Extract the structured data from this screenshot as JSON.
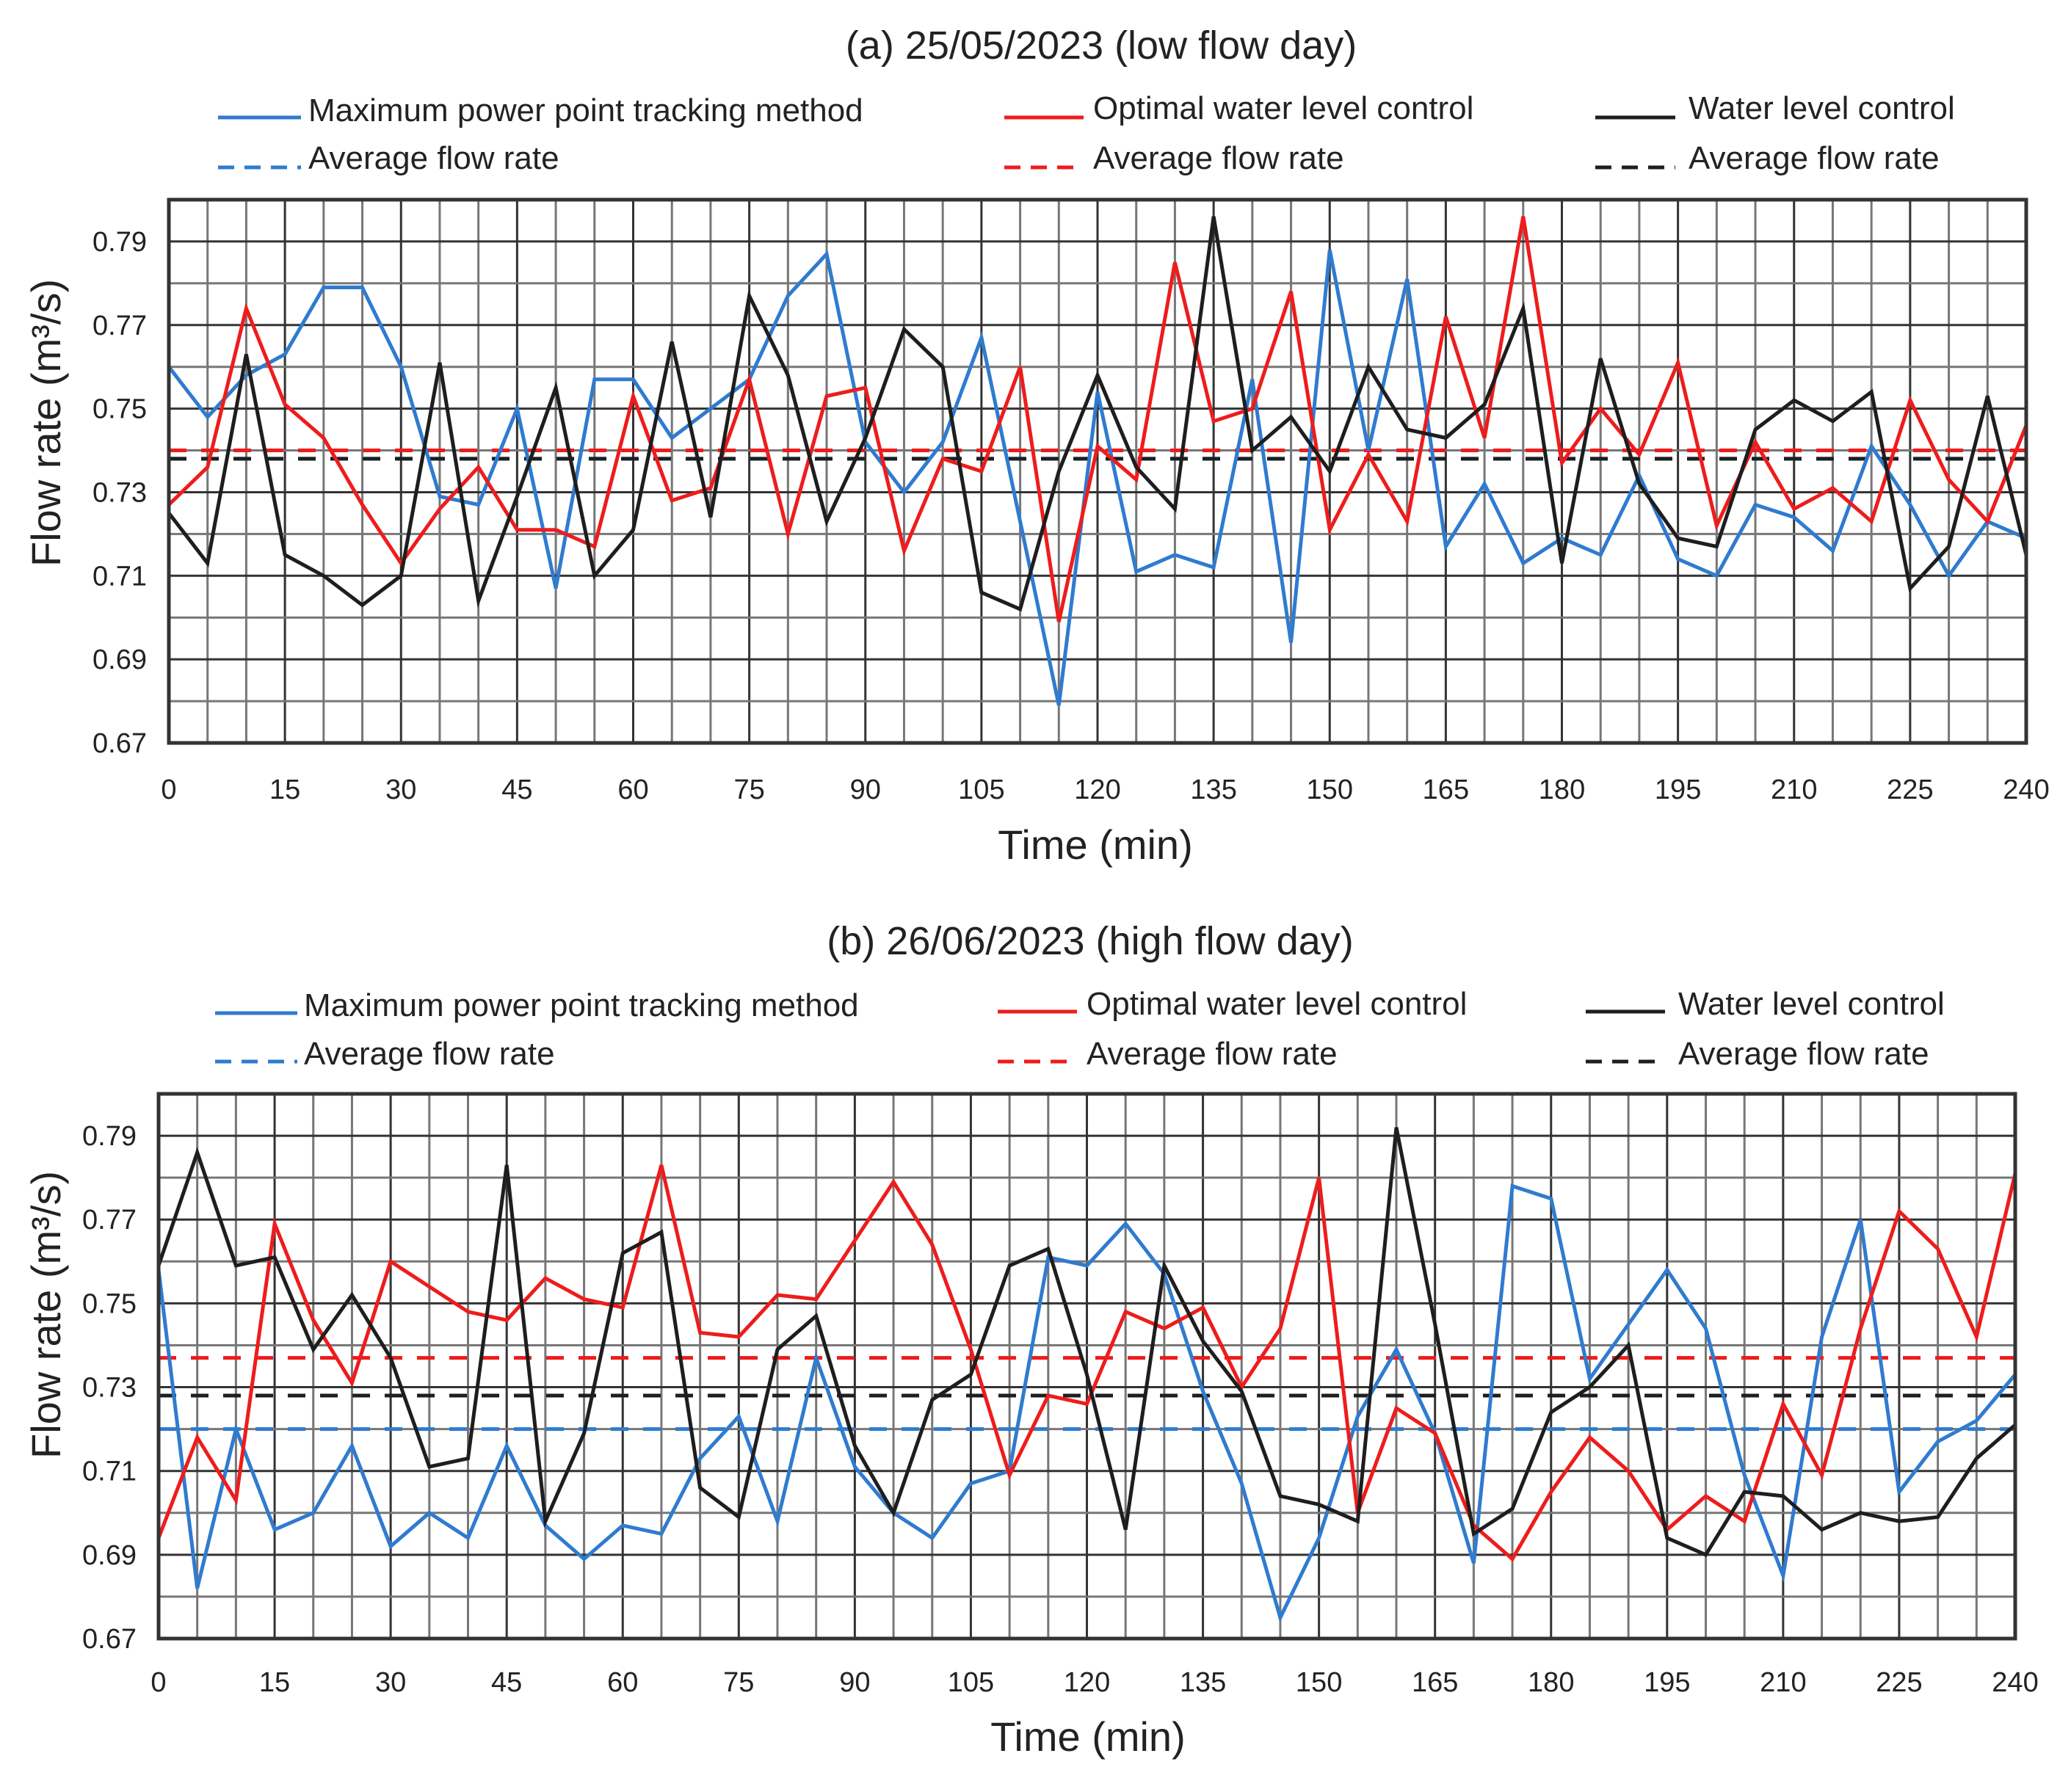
{
  "colors": {
    "mppt": "#2f7bcf",
    "optimal": "#ee1c1c",
    "wlc": "#1e1e1e",
    "grid": "#4a4a4a"
  },
  "chart_data": [
    {
      "type": "line",
      "title": "(a) 25/05/2023 (low flow day)",
      "xlabel": "Time (min)",
      "ylabel": "Flow rate (m³/s)",
      "xlim": [
        0,
        240
      ],
      "ylim": [
        0.67,
        0.8
      ],
      "grid": true,
      "xticks": [
        "0",
        "15",
        "30",
        "45",
        "60",
        "75",
        "90",
        "105",
        "120",
        "135",
        "150",
        "165",
        "180",
        "195",
        "210",
        "225",
        "240"
      ],
      "yticks": [
        "0.67",
        "0.69",
        "0.71",
        "0.73",
        "0.75",
        "0.77",
        "0.79"
      ],
      "x_step": 5,
      "legend": {
        "placement": "top",
        "items": [
          "Maximum power point tracking method",
          "Optimal water level control",
          "Water level control",
          "Average flow rate",
          "Average flow rate",
          "Average flow rate"
        ]
      },
      "series": [
        {
          "name": "Maximum power point tracking method",
          "key": "mppt",
          "average": 0.738,
          "values": [
            0.76,
            0.748,
            0.758,
            0.763,
            0.779,
            0.779,
            0.76,
            0.729,
            0.727,
            0.75,
            0.707,
            0.757,
            0.757,
            0.743,
            0.75,
            0.757,
            0.777,
            0.787,
            0.742,
            0.73,
            0.742,
            0.767,
            0.723,
            0.679,
            0.754,
            0.711,
            0.715,
            0.712,
            0.757,
            0.694,
            0.788,
            0.74,
            0.781,
            0.717,
            0.732,
            0.713,
            0.719,
            0.715,
            0.734,
            0.714,
            0.71,
            0.727,
            0.724,
            0.716,
            0.741,
            0.727,
            0.71,
            0.723,
            0.719
          ]
        },
        {
          "name": "Optimal water level control",
          "key": "optimal",
          "average": 0.74,
          "values": [
            0.727,
            0.736,
            0.774,
            0.751,
            0.743,
            0.727,
            0.713,
            0.726,
            0.736,
            0.721,
            0.721,
            0.717,
            0.753,
            0.728,
            0.731,
            0.757,
            0.72,
            0.753,
            0.755,
            0.716,
            0.738,
            0.735,
            0.76,
            0.699,
            0.741,
            0.733,
            0.785,
            0.747,
            0.75,
            0.778,
            0.721,
            0.739,
            0.723,
            0.772,
            0.743,
            0.796,
            0.737,
            0.75,
            0.739,
            0.761,
            0.722,
            0.742,
            0.726,
            0.731,
            0.723,
            0.752,
            0.733,
            0.723,
            0.746
          ]
        },
        {
          "name": "Water level control",
          "key": "wlc",
          "average": 0.738,
          "values": [
            0.725,
            0.713,
            0.763,
            0.715,
            0.71,
            0.703,
            0.71,
            0.761,
            0.704,
            0.729,
            0.755,
            0.71,
            0.721,
            0.766,
            0.724,
            0.777,
            0.758,
            0.723,
            0.743,
            0.769,
            0.76,
            0.706,
            0.702,
            0.735,
            0.758,
            0.736,
            0.726,
            0.796,
            0.74,
            0.748,
            0.735,
            0.76,
            0.745,
            0.743,
            0.751,
            0.774,
            0.713,
            0.762,
            0.732,
            0.719,
            0.717,
            0.745,
            0.752,
            0.747,
            0.754,
            0.707,
            0.717,
            0.753,
            0.715
          ]
        }
      ]
    },
    {
      "type": "line",
      "title": "(b) 26/06/2023 (high flow day)",
      "xlabel": "Time (min)",
      "ylabel": "Flow rate (m³/s)",
      "xlim": [
        0,
        240
      ],
      "ylim": [
        0.67,
        0.8
      ],
      "grid": true,
      "xticks": [
        "0",
        "15",
        "30",
        "45",
        "60",
        "75",
        "90",
        "105",
        "120",
        "135",
        "150",
        "165",
        "180",
        "195",
        "210",
        "225",
        "240"
      ],
      "yticks": [
        "0.67",
        "0.69",
        "0.71",
        "0.73",
        "0.75",
        "0.77",
        "0.79"
      ],
      "x_step": 5,
      "legend": {
        "placement": "top",
        "items": [
          "Maximum power point tracking method",
          "Optimal water level control",
          "Water level control",
          "Average flow rate",
          "Average flow rate",
          "Average flow rate"
        ]
      },
      "series": [
        {
          "name": "Maximum power point tracking method",
          "key": "mppt",
          "average": 0.72,
          "values": [
            0.758,
            0.682,
            0.72,
            0.696,
            0.7,
            0.716,
            0.692,
            0.7,
            0.694,
            0.716,
            0.697,
            0.689,
            0.697,
            0.695,
            0.713,
            0.723,
            0.698,
            0.737,
            0.711,
            0.7,
            0.694,
            0.707,
            0.71,
            0.761,
            0.759,
            0.769,
            0.757,
            0.729,
            0.707,
            0.675,
            0.694,
            0.723,
            0.739,
            0.719,
            0.688,
            0.778,
            0.775,
            0.732,
            0.745,
            0.758,
            0.744,
            0.709,
            0.685,
            0.742,
            0.77,
            0.705,
            0.717,
            0.722,
            0.733
          ]
        },
        {
          "name": "Optimal water level control",
          "key": "optimal",
          "average": 0.737,
          "values": [
            0.694,
            0.718,
            0.703,
            0.769,
            0.746,
            0.731,
            0.76,
            0.754,
            0.748,
            0.746,
            0.756,
            0.751,
            0.749,
            0.783,
            0.743,
            0.742,
            0.752,
            0.751,
            0.765,
            0.779,
            0.764,
            0.739,
            0.709,
            0.728,
            0.726,
            0.748,
            0.744,
            0.749,
            0.73,
            0.744,
            0.78,
            0.7,
            0.725,
            0.719,
            0.697,
            0.689,
            0.705,
            0.718,
            0.71,
            0.696,
            0.704,
            0.698,
            0.726,
            0.709,
            0.744,
            0.772,
            0.763,
            0.742,
            0.781
          ]
        },
        {
          "name": "Water level control",
          "key": "wlc",
          "average": 0.728,
          "values": [
            0.759,
            0.786,
            0.759,
            0.761,
            0.739,
            0.752,
            0.737,
            0.711,
            0.713,
            0.783,
            0.698,
            0.719,
            0.762,
            0.767,
            0.706,
            0.699,
            0.739,
            0.747,
            0.716,
            0.7,
            0.727,
            0.733,
            0.759,
            0.763,
            0.733,
            0.696,
            0.759,
            0.741,
            0.729,
            0.704,
            0.702,
            0.698,
            0.792,
            0.745,
            0.695,
            0.701,
            0.724,
            0.73,
            0.74,
            0.694,
            0.69,
            0.705,
            0.704,
            0.696,
            0.7,
            0.698,
            0.699,
            0.713,
            0.721
          ]
        }
      ]
    }
  ]
}
